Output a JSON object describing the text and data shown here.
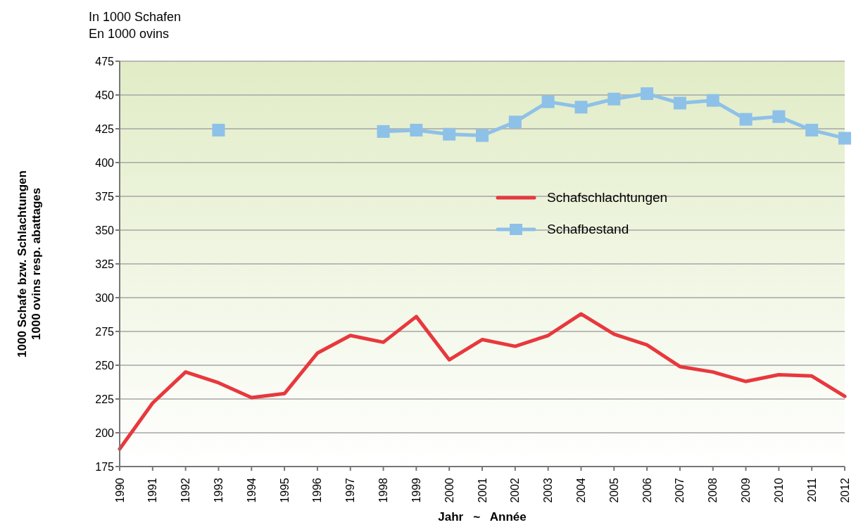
{
  "chart_data": {
    "type": "line",
    "subtitle": "In 1000 Schafen\nEn 1000 ovins",
    "xlabel": "Jahr   ~   Année",
    "ylabel": "1000 Schafe bzw. Schlachtungen\n1000 ovins resp. abattages",
    "categories": [
      "1990",
      "1991",
      "1992",
      "1993",
      "1994",
      "1995",
      "1996",
      "1997",
      "1998",
      "1999",
      "2000",
      "2001",
      "2002",
      "2003",
      "2004",
      "2005",
      "2006",
      "2007",
      "2008",
      "2009",
      "2010",
      "2011",
      "2012"
    ],
    "series": [
      {
        "name": "Schafschlachtungen",
        "color": "#e8383d",
        "marker": "none",
        "values": [
          188,
          222,
          245,
          237,
          226,
          229,
          259,
          272,
          267,
          286,
          254,
          269,
          264,
          272,
          288,
          273,
          265,
          249,
          245,
          238,
          243,
          242,
          227
        ]
      },
      {
        "name": "Schafbestand",
        "color": "#8ec1e8",
        "marker": "square",
        "values": [
          null,
          null,
          null,
          424,
          null,
          null,
          null,
          null,
          423,
          424,
          421,
          420,
          430,
          445,
          441,
          447,
          451,
          444,
          446,
          432,
          434,
          424,
          418
        ]
      }
    ],
    "ylim": [
      175,
      475
    ],
    "yticks": [
      175,
      200,
      225,
      250,
      275,
      300,
      325,
      350,
      375,
      400,
      425,
      450,
      475
    ],
    "grid": "y",
    "legend": "right"
  }
}
